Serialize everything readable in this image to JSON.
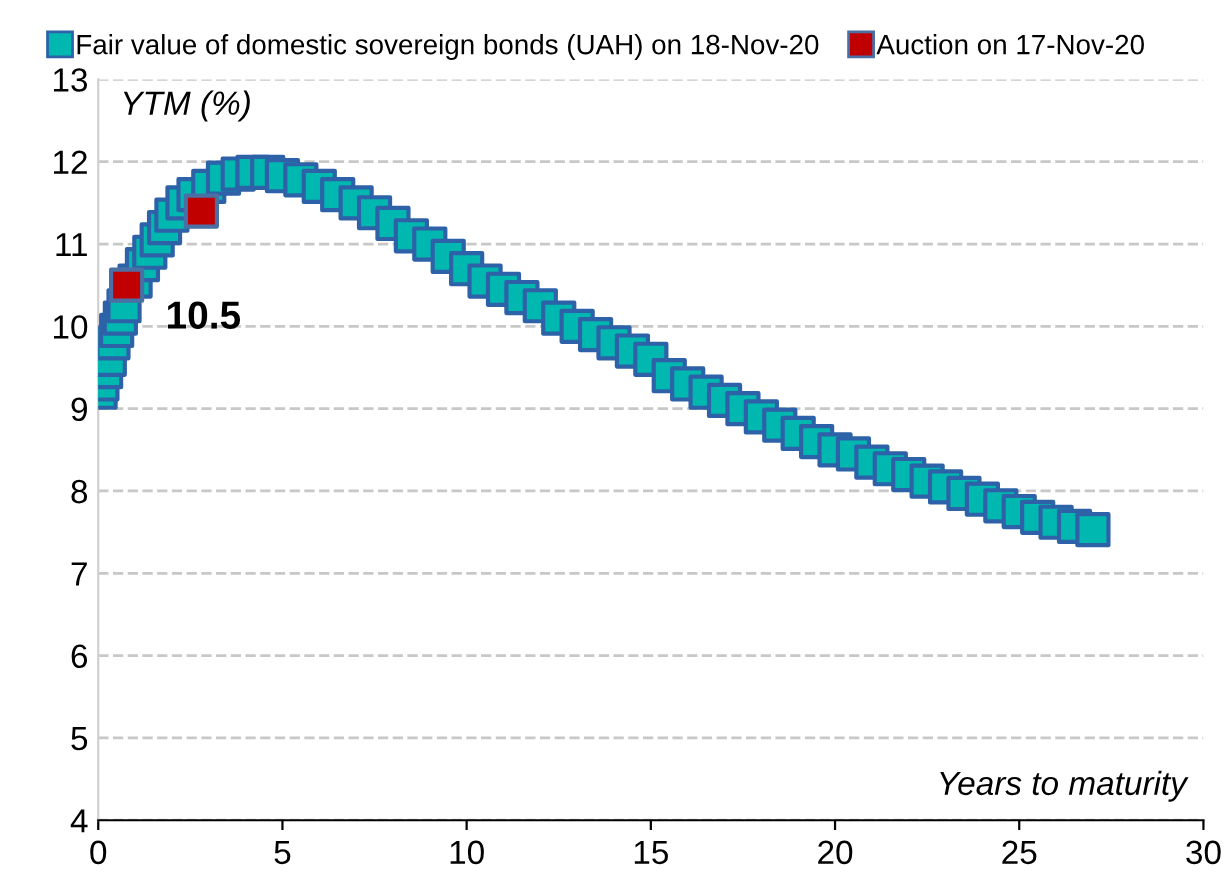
{
  "chart_data": {
    "type": "scatter",
    "ylabel": "YTM (%)",
    "xlabel": "Years to maturity",
    "xlim": [
      0,
      30
    ],
    "xticks": [
      0,
      5,
      10,
      15,
      20,
      25,
      30
    ],
    "ylim": [
      4,
      13
    ],
    "yticks": [
      4,
      5,
      6,
      7,
      8,
      9,
      10,
      11,
      12,
      13
    ],
    "grid": "y",
    "legend": "top",
    "marker": "square",
    "series": [
      {
        "name": "Fair value of domestic sovereign bonds (UAH) on 18-Nov-20",
        "color": "#00b8b0",
        "x": [
          0.05,
          0.1,
          0.2,
          0.3,
          0.4,
          0.5,
          0.6,
          0.7,
          0.9,
          1.0,
          1.2,
          1.4,
          1.6,
          1.8,
          2.0,
          2.3,
          2.6,
          3.0,
          3.4,
          3.8,
          4.2,
          4.6,
          5.0,
          5.5,
          6.0,
          6.5,
          7.0,
          7.5,
          8.0,
          8.5,
          9.0,
          9.5,
          10.0,
          10.5,
          11.0,
          11.5,
          12.0,
          12.5,
          13.0,
          13.5,
          14.0,
          14.5,
          15.0,
          15.5,
          16.0,
          16.5,
          17.0,
          17.5,
          18.0,
          18.5,
          19.0,
          19.5,
          20.0,
          20.5,
          21.0,
          21.5,
          22.0,
          22.5,
          23.0,
          23.5,
          24.0,
          24.5,
          25.0,
          25.5,
          26.0,
          26.5,
          27.0
        ],
        "values": [
          9.2,
          9.3,
          9.45,
          9.6,
          9.8,
          9.95,
          10.1,
          10.25,
          null,
          10.55,
          10.75,
          10.9,
          11.05,
          11.2,
          11.35,
          11.5,
          11.6,
          11.7,
          11.8,
          11.85,
          11.87,
          11.87,
          11.83,
          11.78,
          11.7,
          11.6,
          11.5,
          11.38,
          11.25,
          11.1,
          11.0,
          10.85,
          10.7,
          10.55,
          10.45,
          10.35,
          10.25,
          10.1,
          10.0,
          9.9,
          9.8,
          9.7,
          9.6,
          9.4,
          9.3,
          9.2,
          9.1,
          9.0,
          8.9,
          8.8,
          8.7,
          8.6,
          8.5,
          8.45,
          8.35,
          8.27,
          8.2,
          8.12,
          8.05,
          7.97,
          7.9,
          7.82,
          7.75,
          7.68,
          7.62,
          7.57,
          7.53
        ]
      },
      {
        "name": "Auction on 17-Nov-20",
        "color": "#c00000",
        "x": [
          0.77,
          2.8
        ],
        "values": [
          10.5,
          11.4
        ]
      }
    ],
    "annotations": [
      {
        "text": "10.5",
        "x": 0.77,
        "y": 10.5
      }
    ]
  }
}
